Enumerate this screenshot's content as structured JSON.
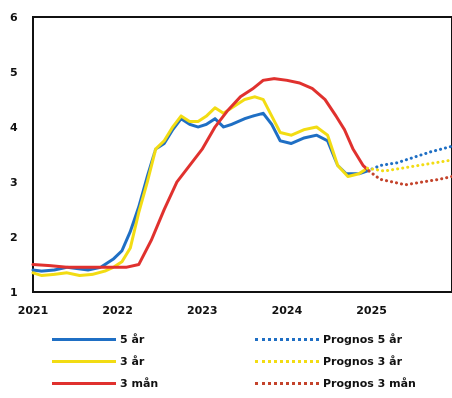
{
  "chart_data": {
    "type": "line",
    "xlim": [
      2021,
      2025.95
    ],
    "ylim": [
      1,
      6
    ],
    "x_ticks": [
      "2021",
      "2022",
      "2023",
      "2024",
      "2025"
    ],
    "y_ticks": [
      "1",
      "2",
      "3",
      "4",
      "5",
      "6"
    ],
    "grid": false,
    "legend_position": "bottom",
    "series": [
      {
        "name": "5 år",
        "color": "#1f6fc4",
        "style": "solid",
        "points": [
          [
            2021.0,
            1.4
          ],
          [
            2021.1,
            1.38
          ],
          [
            2021.25,
            1.4
          ],
          [
            2021.4,
            1.45
          ],
          [
            2021.55,
            1.42
          ],
          [
            2021.65,
            1.4
          ],
          [
            2021.8,
            1.45
          ],
          [
            2021.95,
            1.6
          ],
          [
            2022.05,
            1.75
          ],
          [
            2022.15,
            2.1
          ],
          [
            2022.25,
            2.55
          ],
          [
            2022.35,
            3.1
          ],
          [
            2022.45,
            3.6
          ],
          [
            2022.55,
            3.7
          ],
          [
            2022.65,
            3.95
          ],
          [
            2022.75,
            4.15
          ],
          [
            2022.85,
            4.05
          ],
          [
            2022.95,
            4.0
          ],
          [
            2023.05,
            4.05
          ],
          [
            2023.15,
            4.15
          ],
          [
            2023.25,
            4.0
          ],
          [
            2023.35,
            4.05
          ],
          [
            2023.5,
            4.15
          ],
          [
            2023.6,
            4.2
          ],
          [
            2023.72,
            4.25
          ],
          [
            2023.82,
            4.05
          ],
          [
            2023.92,
            3.75
          ],
          [
            2024.05,
            3.7
          ],
          [
            2024.2,
            3.8
          ],
          [
            2024.35,
            3.85
          ],
          [
            2024.48,
            3.75
          ],
          [
            2024.6,
            3.3
          ],
          [
            2024.7,
            3.15
          ],
          [
            2024.85,
            3.15
          ],
          [
            2024.95,
            3.2
          ]
        ]
      },
      {
        "name": "3 år",
        "color": "#f2dc13",
        "style": "solid",
        "points": [
          [
            2021.0,
            1.35
          ],
          [
            2021.1,
            1.3
          ],
          [
            2021.25,
            1.32
          ],
          [
            2021.4,
            1.35
          ],
          [
            2021.55,
            1.3
          ],
          [
            2021.7,
            1.32
          ],
          [
            2021.85,
            1.38
          ],
          [
            2021.95,
            1.45
          ],
          [
            2022.05,
            1.55
          ],
          [
            2022.15,
            1.8
          ],
          [
            2022.25,
            2.45
          ],
          [
            2022.35,
            3.0
          ],
          [
            2022.45,
            3.6
          ],
          [
            2022.55,
            3.75
          ],
          [
            2022.65,
            4.0
          ],
          [
            2022.75,
            4.2
          ],
          [
            2022.85,
            4.1
          ],
          [
            2022.95,
            4.1
          ],
          [
            2023.05,
            4.2
          ],
          [
            2023.15,
            4.35
          ],
          [
            2023.25,
            4.25
          ],
          [
            2023.35,
            4.35
          ],
          [
            2023.5,
            4.5
          ],
          [
            2023.62,
            4.55
          ],
          [
            2023.72,
            4.5
          ],
          [
            2023.82,
            4.2
          ],
          [
            2023.92,
            3.9
          ],
          [
            2024.05,
            3.85
          ],
          [
            2024.2,
            3.95
          ],
          [
            2024.35,
            4.0
          ],
          [
            2024.48,
            3.85
          ],
          [
            2024.6,
            3.3
          ],
          [
            2024.72,
            3.1
          ],
          [
            2024.85,
            3.15
          ],
          [
            2024.95,
            3.25
          ]
        ]
      },
      {
        "name": "3 mån",
        "color": "#e0312e",
        "style": "solid",
        "points": [
          [
            2021.0,
            1.5
          ],
          [
            2021.2,
            1.48
          ],
          [
            2021.4,
            1.45
          ],
          [
            2021.6,
            1.45
          ],
          [
            2021.8,
            1.45
          ],
          [
            2021.95,
            1.45
          ],
          [
            2022.1,
            1.45
          ],
          [
            2022.25,
            1.5
          ],
          [
            2022.4,
            1.95
          ],
          [
            2022.55,
            2.5
          ],
          [
            2022.7,
            3.0
          ],
          [
            2022.85,
            3.3
          ],
          [
            2023.0,
            3.6
          ],
          [
            2023.15,
            4.0
          ],
          [
            2023.3,
            4.3
          ],
          [
            2023.45,
            4.55
          ],
          [
            2023.6,
            4.7
          ],
          [
            2023.72,
            4.85
          ],
          [
            2023.85,
            4.88
          ],
          [
            2024.0,
            4.85
          ],
          [
            2024.15,
            4.8
          ],
          [
            2024.3,
            4.7
          ],
          [
            2024.45,
            4.5
          ],
          [
            2024.58,
            4.2
          ],
          [
            2024.68,
            3.95
          ],
          [
            2024.78,
            3.6
          ],
          [
            2024.9,
            3.3
          ],
          [
            2024.97,
            3.2
          ]
        ]
      },
      {
        "name": "Prognos 5 år",
        "color": "#1f6fc4",
        "style": "dotted",
        "points": [
          [
            2024.95,
            3.2
          ],
          [
            2025.1,
            3.3
          ],
          [
            2025.3,
            3.35
          ],
          [
            2025.5,
            3.45
          ],
          [
            2025.7,
            3.55
          ],
          [
            2025.95,
            3.65
          ]
        ]
      },
      {
        "name": "Prognos 3 år",
        "color": "#f2dc13",
        "style": "dotted",
        "points": [
          [
            2024.95,
            3.25
          ],
          [
            2025.15,
            3.2
          ],
          [
            2025.35,
            3.25
          ],
          [
            2025.55,
            3.3
          ],
          [
            2025.75,
            3.35
          ],
          [
            2025.95,
            3.4
          ]
        ]
      },
      {
        "name": "Prognos 3 mån",
        "color": "#c4432b",
        "style": "dotted",
        "points": [
          [
            2024.97,
            3.2
          ],
          [
            2025.1,
            3.05
          ],
          [
            2025.25,
            3.0
          ],
          [
            2025.4,
            2.95
          ],
          [
            2025.6,
            3.0
          ],
          [
            2025.8,
            3.05
          ],
          [
            2025.95,
            3.1
          ]
        ]
      }
    ]
  },
  "legend": {
    "items": [
      {
        "label": "5 år",
        "color": "#1f6fc4",
        "style": "solid"
      },
      {
        "label": "Prognos 5 år",
        "color": "#1f6fc4",
        "style": "dotted"
      },
      {
        "label": "3 år",
        "color": "#f2dc13",
        "style": "solid"
      },
      {
        "label": "Prognos 3 år",
        "color": "#f2dc13",
        "style": "dotted"
      },
      {
        "label": "3 mån",
        "color": "#e0312e",
        "style": "solid"
      },
      {
        "label": "Prognos 3 mån",
        "color": "#c4432b",
        "style": "dotted"
      }
    ]
  }
}
